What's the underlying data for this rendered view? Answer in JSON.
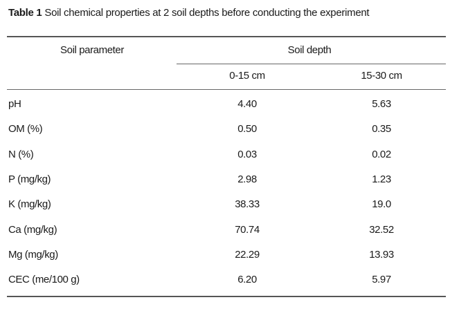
{
  "table": {
    "label": "Table 1",
    "title": "Soil chemical properties at 2 soil depths before conducting the experiment",
    "header": {
      "parameter": "Soil parameter",
      "depth_group": "Soil depth",
      "col1": "0-15 cm",
      "col2": "15-30 cm"
    },
    "rows": [
      {
        "parameter": "pH",
        "depth_0_15": "4.40",
        "depth_15_30": "5.63"
      },
      {
        "parameter": "OM (%)",
        "depth_0_15": "0.50",
        "depth_15_30": "0.35"
      },
      {
        "parameter": "N (%)",
        "depth_0_15": "0.03",
        "depth_15_30": "0.02"
      },
      {
        "parameter": "P (mg/kg)",
        "depth_0_15": "2.98",
        "depth_15_30": "1.23"
      },
      {
        "parameter": "K (mg/kg)",
        "depth_0_15": "38.33",
        "depth_15_30": "19.0"
      },
      {
        "parameter": "Ca (mg/kg)",
        "depth_0_15": "70.74",
        "depth_15_30": "32.52"
      },
      {
        "parameter": "Mg (mg/kg)",
        "depth_0_15": "22.29",
        "depth_15_30": "13.93"
      },
      {
        "parameter": "CEC (me/100 g)",
        "depth_0_15": "6.20",
        "depth_15_30": "5.97"
      }
    ]
  }
}
